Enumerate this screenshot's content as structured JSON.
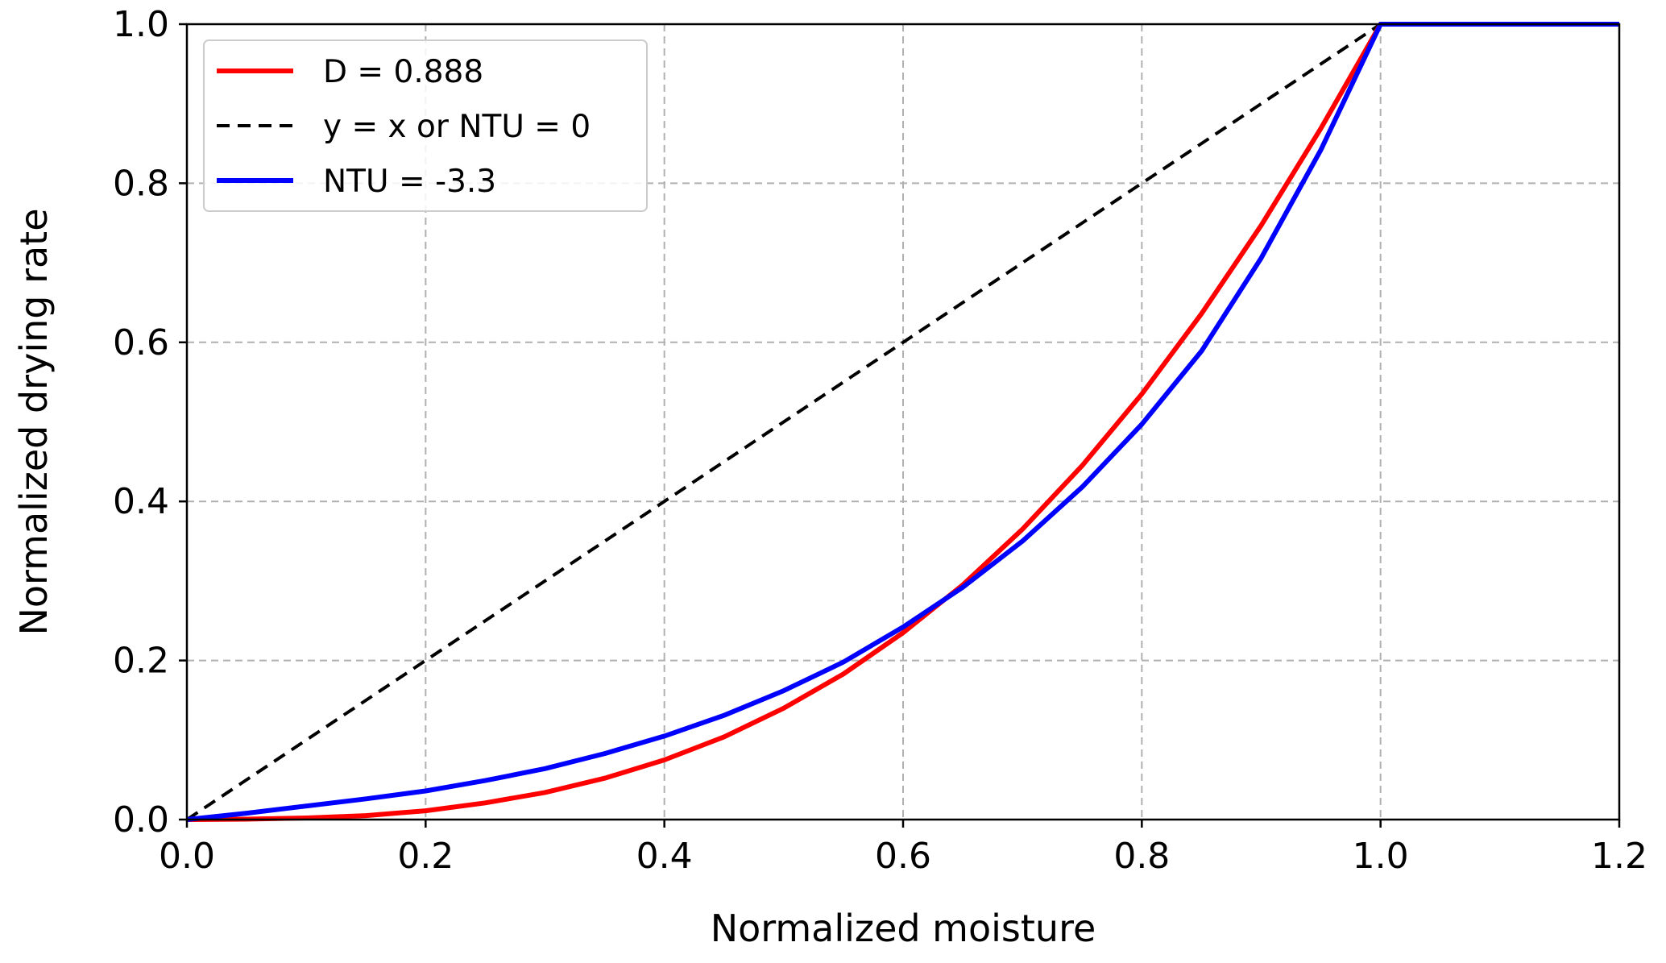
{
  "chart_data": {
    "type": "line",
    "title": "",
    "xlabel": "Normalized moisture",
    "ylabel": "Normalized drying rate",
    "xlim": [
      0.0,
      1.2
    ],
    "ylim": [
      0.0,
      1.0
    ],
    "xticks": [
      "0.0",
      "0.2",
      "0.4",
      "0.6",
      "0.8",
      "1.0",
      "1.2"
    ],
    "yticks": [
      "0.0",
      "0.2",
      "0.4",
      "0.6",
      "0.8",
      "1.0"
    ],
    "grid": true,
    "legend_position": "top-left",
    "series": [
      {
        "name": "D = 0.888",
        "color": "#ff0000",
        "style": "solid",
        "x": [
          0.0,
          0.05,
          0.1,
          0.15,
          0.2,
          0.25,
          0.3,
          0.35,
          0.4,
          0.45,
          0.5,
          0.55,
          0.6,
          0.65,
          0.7,
          0.75,
          0.8,
          0.85,
          0.9,
          0.95,
          1.0,
          1.2
        ],
        "y": [
          0.0,
          0.0005,
          0.002,
          0.005,
          0.011,
          0.021,
          0.034,
          0.052,
          0.075,
          0.104,
          0.14,
          0.183,
          0.235,
          0.295,
          0.365,
          0.445,
          0.535,
          0.636,
          0.747,
          0.869,
          1.0,
          1.0
        ]
      },
      {
        "name": "y = x or NTU = 0",
        "color": "#000000",
        "style": "dashed",
        "x": [
          0.0,
          1.0,
          1.2
        ],
        "y": [
          0.0,
          1.0,
          1.0
        ]
      },
      {
        "name": "NTU = -3.3",
        "color": "#0000ff",
        "style": "solid",
        "x": [
          0.0,
          0.05,
          0.1,
          0.15,
          0.2,
          0.25,
          0.3,
          0.35,
          0.4,
          0.45,
          0.5,
          0.55,
          0.6,
          0.65,
          0.7,
          0.75,
          0.8,
          0.85,
          0.9,
          0.95,
          1.0,
          1.2
        ],
        "y": [
          0.0,
          0.008,
          0.017,
          0.026,
          0.036,
          0.049,
          0.064,
          0.083,
          0.105,
          0.131,
          0.162,
          0.198,
          0.242,
          0.292,
          0.35,
          0.418,
          0.497,
          0.589,
          0.706,
          0.842,
          1.0,
          1.0
        ]
      }
    ]
  }
}
